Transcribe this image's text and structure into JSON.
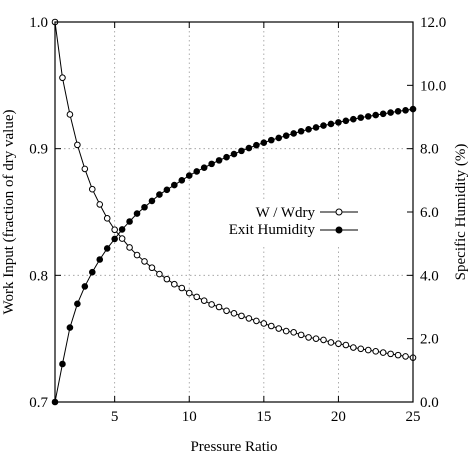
{
  "chart_data": {
    "type": "line",
    "title": "",
    "xlabel": "Pressure Ratio",
    "ylabel_left": "Work Input (fraction of dry value)",
    "ylabel_right": "Specific Humidity (%)",
    "xlim": [
      1,
      25
    ],
    "ylim_left": [
      0.7,
      1.0
    ],
    "ylim_right": [
      0.0,
      12.0
    ],
    "x_ticks": [
      "5",
      "10",
      "15",
      "20",
      "25"
    ],
    "y_left_ticks": [
      "0.7",
      "0.8",
      "0.9",
      "1.0"
    ],
    "y_right_ticks": [
      "0.0",
      "2.0",
      "4.0",
      "6.0",
      "8.0",
      "10.0",
      "12.0"
    ],
    "grid": true,
    "legend_position": "center-right",
    "x": [
      1.0,
      1.5,
      2.0,
      2.5,
      3.0,
      3.5,
      4.0,
      4.5,
      5.0,
      5.5,
      6.0,
      6.5,
      7.0,
      7.5,
      8.0,
      8.5,
      9.0,
      9.5,
      10.0,
      10.5,
      11.0,
      11.5,
      12.0,
      12.5,
      13.0,
      13.5,
      14.0,
      14.5,
      15.0,
      15.5,
      16.0,
      16.5,
      17.0,
      17.5,
      18.0,
      18.5,
      19.0,
      19.5,
      20.0,
      20.5,
      21.0,
      21.5,
      22.0,
      22.5,
      23.0,
      23.5,
      24.0,
      24.5,
      25.0
    ],
    "series": [
      {
        "name": "W / Wdry",
        "axis": "left",
        "marker": "open-circle",
        "values": [
          1.0,
          0.956,
          0.927,
          0.903,
          0.884,
          0.868,
          0.856,
          0.845,
          0.836,
          0.829,
          0.822,
          0.816,
          0.811,
          0.806,
          0.801,
          0.797,
          0.793,
          0.79,
          0.786,
          0.783,
          0.78,
          0.777,
          0.775,
          0.772,
          0.77,
          0.768,
          0.766,
          0.764,
          0.762,
          0.76,
          0.758,
          0.756,
          0.755,
          0.753,
          0.751,
          0.75,
          0.749,
          0.747,
          0.746,
          0.745,
          0.743,
          0.742,
          0.741,
          0.74,
          0.739,
          0.738,
          0.737,
          0.736,
          0.735
        ]
      },
      {
        "name": "Exit Humidity",
        "axis": "right",
        "marker": "filled-circle",
        "values": [
          0.0,
          1.2,
          2.35,
          3.1,
          3.65,
          4.1,
          4.5,
          4.85,
          5.15,
          5.45,
          5.7,
          5.95,
          6.15,
          6.35,
          6.55,
          6.7,
          6.85,
          7.0,
          7.15,
          7.28,
          7.4,
          7.52,
          7.63,
          7.73,
          7.83,
          7.93,
          8.02,
          8.11,
          8.19,
          8.27,
          8.34,
          8.41,
          8.48,
          8.55,
          8.61,
          8.67,
          8.73,
          8.78,
          8.83,
          8.88,
          8.93,
          8.98,
          9.02,
          9.06,
          9.1,
          9.14,
          9.18,
          9.21,
          9.25
        ]
      }
    ]
  }
}
